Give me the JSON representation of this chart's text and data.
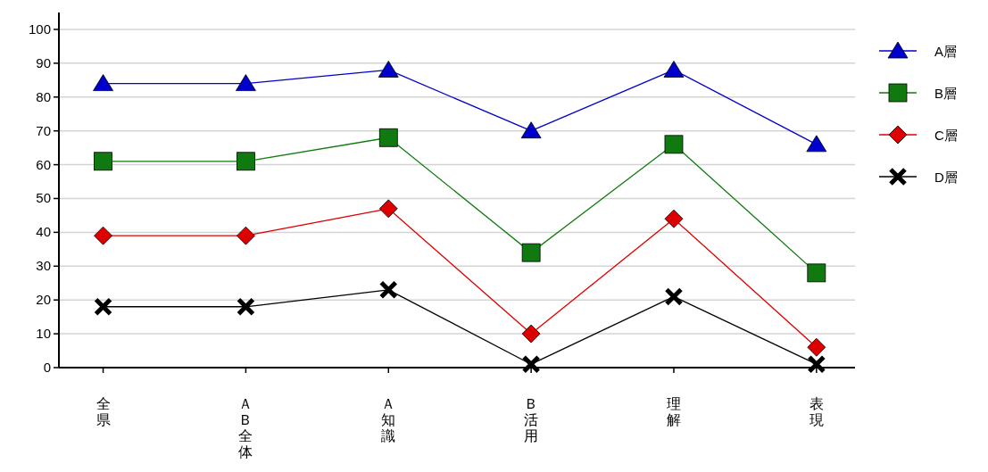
{
  "chart_data": {
    "type": "line",
    "categories": [
      "全県",
      "ＡＢ全体",
      "Ａ知識",
      "Ｂ活用",
      "理解",
      "表現"
    ],
    "ylim": [
      0,
      105
    ],
    "yticks": [
      0,
      10,
      20,
      30,
      40,
      50,
      60,
      70,
      80,
      90,
      100
    ],
    "grid": "y",
    "legend": "top right",
    "line_style": "solid",
    "series": [
      {
        "name": "A層",
        "color": "#0000cc",
        "marker": "triangle",
        "values": [
          84,
          84,
          88,
          70,
          88,
          66
        ]
      },
      {
        "name": "B層",
        "color": "#107a10",
        "marker": "square",
        "values": [
          61,
          61,
          68,
          34,
          66,
          28
        ]
      },
      {
        "name": "C層",
        "color": "#dd0000",
        "marker": "diamond",
        "values": [
          39,
          39,
          47,
          10,
          44,
          6
        ]
      },
      {
        "name": "D層",
        "color": "#000000",
        "marker": "cross",
        "values": [
          18,
          18,
          23,
          1,
          21,
          1
        ]
      }
    ]
  }
}
